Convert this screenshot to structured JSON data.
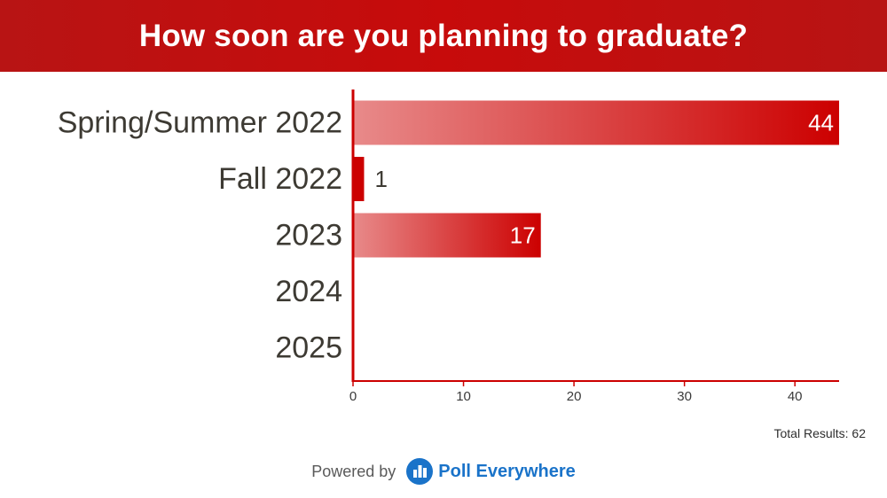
{
  "header": {
    "title": "How soon are you planning to graduate?"
  },
  "chart_data": {
    "type": "bar",
    "orientation": "horizontal",
    "categories": [
      "Spring/Summer 2022",
      "Fall 2022",
      "2023",
      "2024",
      "2025"
    ],
    "values": [
      44,
      1,
      17,
      0,
      0
    ],
    "value_labels": [
      "44",
      "1",
      "17",
      "",
      ""
    ],
    "xlim": [
      0,
      44
    ],
    "xticks": [
      0,
      10,
      20,
      30,
      40
    ],
    "title": "How soon are you planning to graduate?",
    "xlabel": "",
    "ylabel": "",
    "grid": false,
    "colors": {
      "bar": "#cc0000",
      "bar_light": "#e88a8a",
      "axis": "#cc0000",
      "label": "#3d3a33"
    }
  },
  "total": {
    "label": "Total Results: 62"
  },
  "footer": {
    "powered": "Powered by",
    "brand": "Poll Everywhere",
    "icon": "poll-everywhere-logo-icon"
  }
}
